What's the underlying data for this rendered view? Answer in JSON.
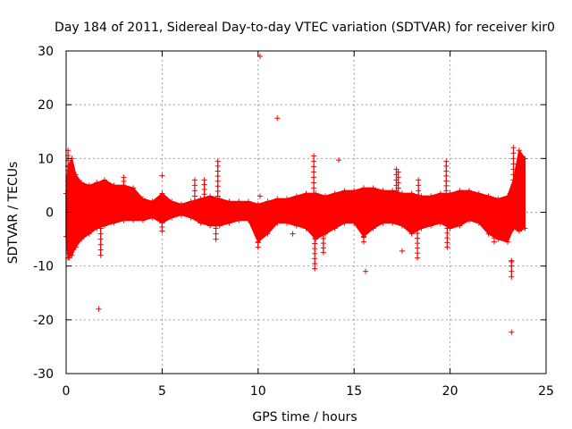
{
  "chart_data": {
    "type": "scatter",
    "title": "Day 184 of 2011, Sidereal Day-to-day VTEC variation (SDTVAR) for receiver kir0",
    "xlabel": "GPS time / hours",
    "ylabel": "SDTVAR / TECUs",
    "xlim": [
      0,
      25
    ],
    "ylim": [
      -30,
      30
    ],
    "xticks": [
      0,
      5,
      10,
      15,
      20,
      25
    ],
    "yticks": [
      -30,
      -20,
      -10,
      0,
      10,
      20,
      30
    ],
    "grid": true,
    "marker": "+",
    "series_color": "#ff0000",
    "envelope": {
      "x": [
        0.0,
        0.1,
        0.3,
        0.5,
        0.8,
        1.2,
        1.6,
        2.0,
        2.5,
        3.0,
        3.5,
        4.0,
        4.5,
        5.0,
        5.5,
        6.0,
        6.5,
        7.0,
        7.5,
        8.0,
        8.5,
        9.0,
        9.5,
        10.0,
        10.5,
        11.0,
        11.5,
        12.0,
        12.5,
        13.0,
        13.5,
        14.0,
        14.5,
        15.0,
        15.5,
        16.0,
        16.5,
        17.0,
        17.5,
        18.0,
        18.5,
        19.0,
        19.5,
        20.0,
        20.5,
        21.0,
        21.5,
        22.0,
        22.5,
        23.0,
        23.3,
        23.6,
        23.9
      ],
      "upper": [
        3.5,
        8.5,
        10.0,
        7.0,
        5.5,
        5.0,
        5.5,
        6.0,
        5.0,
        5.0,
        4.5,
        2.5,
        2.0,
        3.5,
        2.0,
        1.5,
        2.0,
        2.5,
        3.0,
        2.5,
        2.0,
        2.0,
        2.0,
        1.5,
        2.0,
        2.5,
        2.5,
        3.0,
        3.5,
        3.5,
        3.0,
        3.5,
        4.0,
        4.0,
        4.5,
        4.5,
        4.0,
        4.0,
        3.5,
        3.5,
        3.0,
        3.0,
        3.5,
        3.5,
        4.0,
        4.0,
        3.5,
        3.0,
        2.5,
        3.0,
        6.0,
        11.5,
        10.0
      ],
      "lower": [
        -4.5,
        -8.5,
        -8.0,
        -6.5,
        -5.0,
        -4.0,
        -3.0,
        -2.5,
        -2.0,
        -1.5,
        -1.5,
        -1.5,
        -1.0,
        -2.0,
        -1.0,
        -0.5,
        -1.0,
        -2.0,
        -2.5,
        -2.5,
        -2.0,
        -1.5,
        -1.5,
        -5.5,
        -4.0,
        -2.0,
        -2.0,
        -2.5,
        -3.0,
        -5.0,
        -4.0,
        -3.0,
        -2.0,
        -2.0,
        -4.5,
        -3.0,
        -2.0,
        -2.0,
        -2.5,
        -4.0,
        -3.0,
        -2.5,
        -2.0,
        -3.0,
        -2.5,
        -1.5,
        -2.0,
        -4.0,
        -5.0,
        -5.5,
        -3.0,
        -3.5,
        -3.0
      ]
    },
    "spikes": [
      {
        "x": 0.1,
        "y0": 4.0,
        "y1": 11.5
      },
      {
        "x": 0.15,
        "y0": -4.0,
        "y1": -8.5
      },
      {
        "x": 1.8,
        "y0": -3.0,
        "y1": -8.0
      },
      {
        "x": 3.0,
        "y0": 5.0,
        "y1": 6.5
      },
      {
        "x": 5.0,
        "y0": -2.0,
        "y1": -3.5
      },
      {
        "x": 6.7,
        "y0": 2.0,
        "y1": 6.0
      },
      {
        "x": 7.2,
        "y0": 2.5,
        "y1": 6.0
      },
      {
        "x": 7.8,
        "y0": -2.0,
        "y1": -5.0
      },
      {
        "x": 7.9,
        "y0": 3.0,
        "y1": 9.5
      },
      {
        "x": 10.0,
        "y0": -3.0,
        "y1": -6.5
      },
      {
        "x": 12.9,
        "y0": 3.5,
        "y1": 10.5
      },
      {
        "x": 12.95,
        "y0": -3.0,
        "y1": -10.5
      },
      {
        "x": 13.4,
        "y0": -4.0,
        "y1": -7.5
      },
      {
        "x": 15.5,
        "y0": -3.0,
        "y1": -5.5
      },
      {
        "x": 17.2,
        "y0": 4.0,
        "y1": 8.0
      },
      {
        "x": 17.3,
        "y0": 3.5,
        "y1": 7.5
      },
      {
        "x": 18.3,
        "y0": -3.0,
        "y1": -8.5
      },
      {
        "x": 18.35,
        "y0": 3.0,
        "y1": 6.0
      },
      {
        "x": 19.8,
        "y0": 4.0,
        "y1": 9.5
      },
      {
        "x": 19.85,
        "y0": -3.0,
        "y1": -6.5
      },
      {
        "x": 22.3,
        "y0": -4.0,
        "y1": -5.5
      },
      {
        "x": 23.2,
        "y0": -9.0,
        "y1": -12.0
      },
      {
        "x": 23.3,
        "y0": 6.0,
        "y1": 12.0
      }
    ],
    "outliers": [
      {
        "x": 10.1,
        "y": 29.0
      },
      {
        "x": 11.0,
        "y": 17.5
      },
      {
        "x": 5.0,
        "y": 6.8
      },
      {
        "x": 1.7,
        "y": -18.0
      },
      {
        "x": 10.1,
        "y": 3.0
      },
      {
        "x": 11.8,
        "y": -4.0
      },
      {
        "x": 14.2,
        "y": 9.7
      },
      {
        "x": 15.6,
        "y": -11.0
      },
      {
        "x": 17.5,
        "y": -7.2
      },
      {
        "x": 23.2,
        "y": -22.3
      },
      {
        "x": 23.2,
        "y": -9.2
      }
    ]
  }
}
